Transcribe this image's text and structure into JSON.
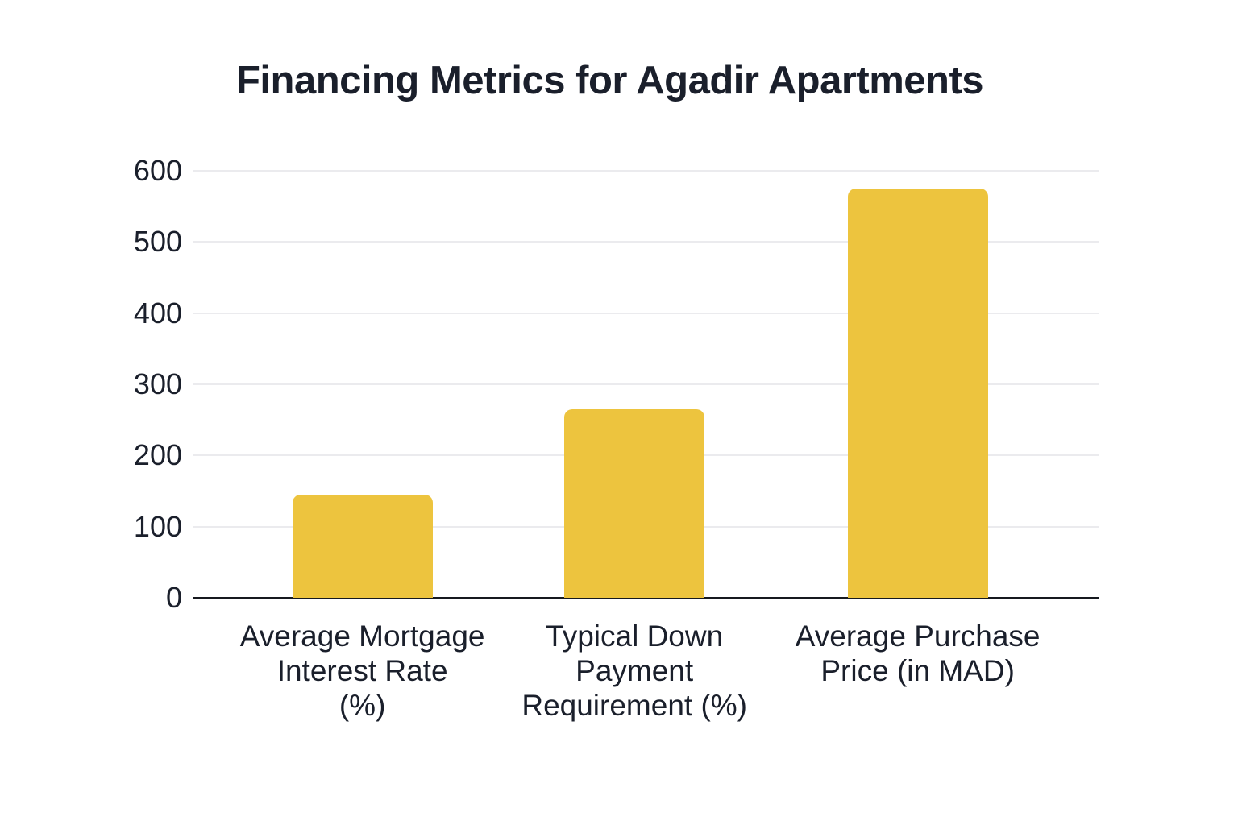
{
  "chart_data": {
    "type": "bar",
    "title": "Financing Metrics for Agadir Apartments",
    "categories": [
      "Average Mortgage Interest Rate (%)",
      "Typical Down Payment Requirement (%)",
      "Average Purchase Price (in MAD)"
    ],
    "category_lines": [
      [
        "Average Mortgage",
        "Interest Rate",
        "(%)"
      ],
      [
        "Typical Down",
        "Payment",
        "Requirement (%)"
      ],
      [
        "Average Purchase",
        "Price (in MAD)"
      ]
    ],
    "values": [
      145,
      265,
      575
    ],
    "xlabel": "",
    "ylabel": "",
    "ylim": [
      0,
      600
    ],
    "yticks": [
      0,
      100,
      200,
      300,
      400,
      500,
      600
    ],
    "grid": true,
    "legend": false,
    "bar_color": "#edc43e",
    "colors": {
      "text": "#1a1f2b",
      "gridline": "#ebebee",
      "axis": "#16191f",
      "background": "#ffffff"
    }
  }
}
